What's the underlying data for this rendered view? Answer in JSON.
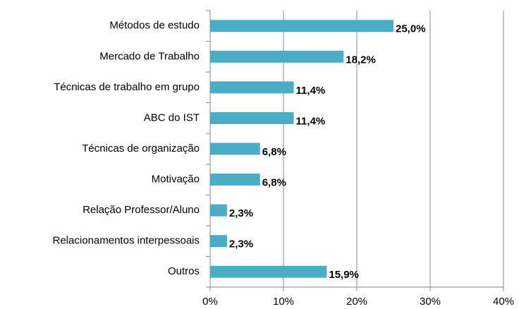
{
  "chart_data": {
    "type": "barh",
    "categories": [
      "Métodos de estudo",
      "Mercado de Trabalho",
      "Técnicas de trabalho em grupo",
      "ABC do IST",
      "Técnicas de organização",
      "Motivação",
      "Relação Professor/Aluno",
      "Relacionamentos interpessoais",
      "Outros"
    ],
    "values": [
      25.0,
      18.2,
      11.4,
      11.4,
      6.8,
      6.8,
      2.3,
      2.3,
      15.9
    ],
    "value_labels": [
      "25,0%",
      "18,2%",
      "11,4%",
      "11,4%",
      "6,8%",
      "6,8%",
      "2,3%",
      "2,3%",
      "15,9%"
    ],
    "color": "#4bacc6",
    "xlim": [
      0,
      40
    ],
    "xticks": [
      {
        "value": 0,
        "label": "0%"
      },
      {
        "value": 10,
        "label": "10%"
      },
      {
        "value": 20,
        "label": "20%"
      },
      {
        "value": 30,
        "label": "30%"
      },
      {
        "value": 40,
        "label": "40%"
      }
    ],
    "grid": true
  }
}
